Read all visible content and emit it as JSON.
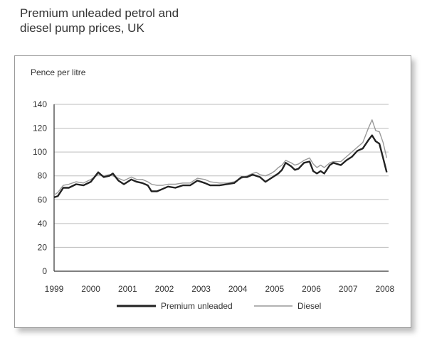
{
  "title": "Premium unleaded petrol and\ndiesel pump prices, UK",
  "chart_data": {
    "type": "line",
    "title": "Premium unleaded petrol and diesel pump prices, UK",
    "ylabel": "Pence per litre",
    "xlabel": "",
    "ylim": [
      0,
      140
    ],
    "xlim": [
      1999,
      2008.1
    ],
    "yticks": [
      0,
      20,
      40,
      60,
      80,
      100,
      120,
      140
    ],
    "xticks": [
      "1999",
      "2000",
      "2001",
      "2002",
      "2003",
      "2004",
      "2005",
      "2006",
      "2007",
      "2008"
    ],
    "grid": true,
    "legend": "bottom",
    "colors": {
      "premium": "#222222",
      "diesel": "#999999"
    },
    "series": [
      {
        "name": "Premium unleaded",
        "x": [
          1999.0,
          1999.1,
          1999.25,
          1999.4,
          1999.6,
          1999.8,
          2000.0,
          2000.2,
          2000.35,
          2000.5,
          2000.6,
          2000.75,
          2000.9,
          2001.1,
          2001.25,
          2001.4,
          2001.55,
          2001.65,
          2001.8,
          2001.95,
          2002.1,
          2002.3,
          2002.5,
          2002.7,
          2002.9,
          2003.1,
          2003.25,
          2003.5,
          2003.7,
          2003.9,
          2004.1,
          2004.25,
          2004.4,
          2004.5,
          2004.6,
          2004.75,
          2004.9,
          2005.0,
          2005.1,
          2005.2,
          2005.3,
          2005.45,
          2005.55,
          2005.65,
          2005.8,
          2005.95,
          2006.05,
          2006.15,
          2006.25,
          2006.35,
          2006.5,
          2006.6,
          2006.8,
          2006.95,
          2007.1,
          2007.25,
          2007.4,
          2007.55,
          2007.65,
          2007.75,
          2007.85,
          2007.95,
          2008.05
        ],
        "values": [
          62,
          63,
          70,
          70,
          73,
          72,
          75,
          83,
          79,
          80,
          82,
          76,
          73,
          77,
          75,
          74,
          72,
          67,
          67,
          69,
          71,
          70,
          72,
          72,
          76,
          74,
          72,
          72,
          73,
          74,
          79,
          79,
          81,
          80,
          79,
          75,
          78,
          80,
          82,
          85,
          91,
          88,
          85,
          86,
          91,
          92,
          84,
          82,
          84,
          82,
          89,
          91,
          89,
          93,
          96,
          101,
          103,
          110,
          114,
          109,
          107,
          95,
          83
        ]
      },
      {
        "name": "Diesel",
        "x": [
          1999.0,
          1999.1,
          1999.25,
          1999.4,
          1999.6,
          1999.8,
          2000.0,
          2000.2,
          2000.35,
          2000.5,
          2000.6,
          2000.75,
          2000.9,
          2001.1,
          2001.25,
          2001.4,
          2001.55,
          2001.65,
          2001.8,
          2001.95,
          2002.1,
          2002.3,
          2002.5,
          2002.7,
          2002.9,
          2003.1,
          2003.25,
          2003.5,
          2003.7,
          2003.9,
          2004.1,
          2004.25,
          2004.4,
          2004.5,
          2004.6,
          2004.75,
          2004.9,
          2005.0,
          2005.1,
          2005.2,
          2005.3,
          2005.45,
          2005.55,
          2005.65,
          2005.8,
          2005.95,
          2006.05,
          2006.15,
          2006.25,
          2006.35,
          2006.5,
          2006.6,
          2006.8,
          2006.95,
          2007.1,
          2007.25,
          2007.4,
          2007.55,
          2007.65,
          2007.75,
          2007.85,
          2007.95,
          2008.05
        ],
        "values": [
          64,
          66,
          72,
          73,
          75,
          74,
          77,
          81,
          80,
          81,
          80,
          78,
          76,
          79,
          77,
          77,
          75,
          73,
          72,
          72,
          73,
          73,
          74,
          74,
          78,
          77,
          75,
          74,
          74,
          75,
          78,
          80,
          82,
          83,
          81,
          80,
          82,
          84,
          87,
          89,
          93,
          91,
          89,
          90,
          93,
          95,
          90,
          87,
          89,
          87,
          91,
          92,
          92,
          96,
          100,
          104,
          108,
          120,
          127,
          118,
          117,
          108,
          95
        ]
      }
    ]
  }
}
